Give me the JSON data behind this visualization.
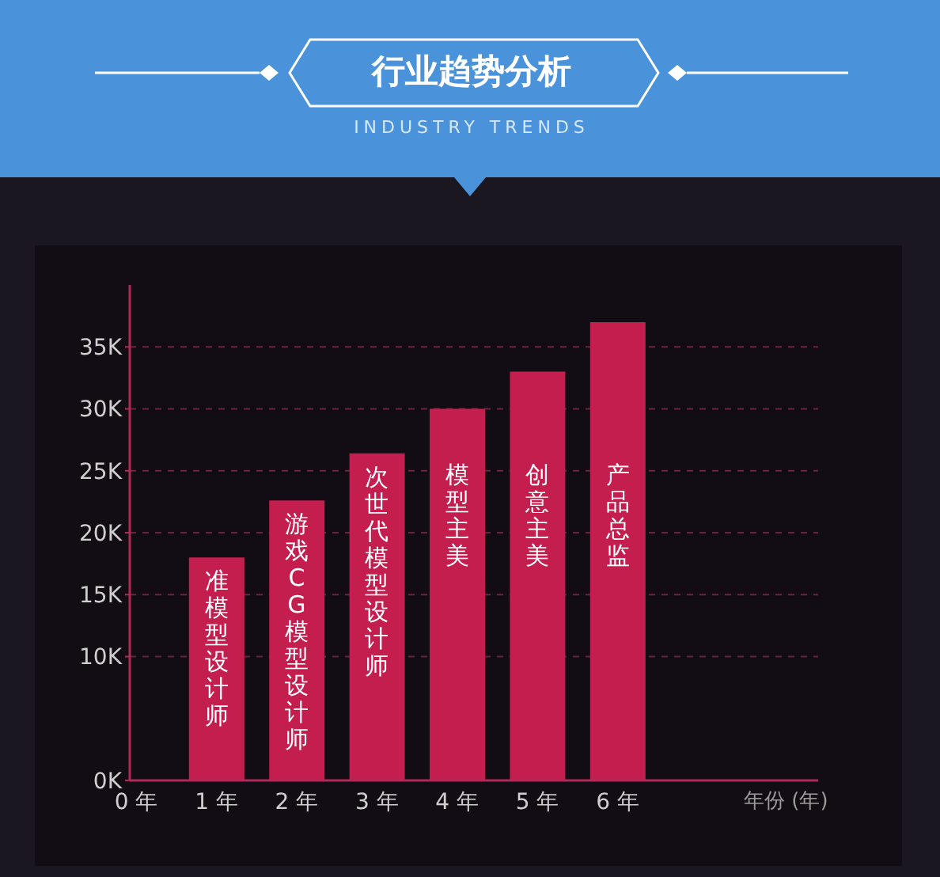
{
  "chart_data": {
    "type": "bar",
    "title": "行业趋势分析",
    "subtitle": "INDUSTRY TRENDS",
    "xlabel": "年份 (年)",
    "categories": [
      "0 年",
      "1 年",
      "2 年",
      "3 年",
      "4 年",
      "5 年",
      "6 年"
    ],
    "values": [
      null,
      18,
      22.6,
      26.4,
      30,
      33,
      37
    ],
    "color": "#c41e4e",
    "ylim": [
      0,
      40
    ],
    "yticks": [
      {
        "value": 0,
        "label": "0K"
      },
      {
        "value": 10,
        "label": "10K"
      },
      {
        "value": 15,
        "label": "15K"
      },
      {
        "value": 20,
        "label": "20K"
      },
      {
        "value": 25,
        "label": "25K"
      },
      {
        "value": 30,
        "label": "30K"
      },
      {
        "value": 35,
        "label": "35K"
      }
    ],
    "grid": "y",
    "legend": false,
    "annotations": [
      "准模型设计师",
      "游戏CG模型设计师",
      "次世代模型设计师",
      "模型主美",
      "创意主美",
      "产品总监"
    ]
  }
}
